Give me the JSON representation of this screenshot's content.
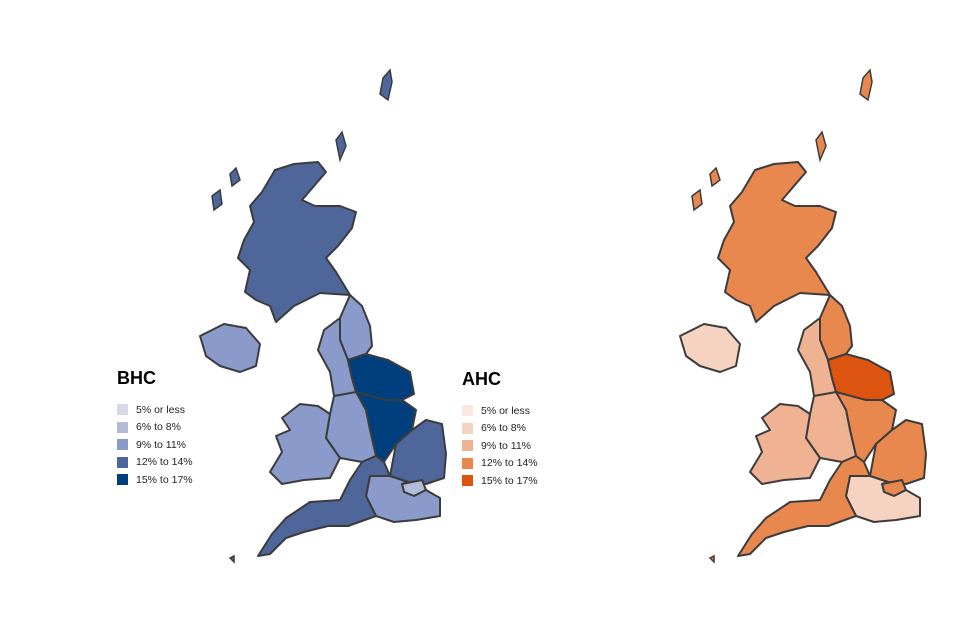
{
  "maps": [
    {
      "id": "bhc",
      "title": "BHC",
      "palette": [
        "#d5d9e8",
        "#b3bcd6",
        "#8a9aca",
        "#4e6699",
        "#003f7d"
      ],
      "regions": {
        "scotland": 3,
        "northern_ireland": 2,
        "north_east": 2,
        "north_west": 2,
        "yorkshire": 4,
        "east_midlands": 4,
        "west_midlands": 2,
        "wales": 2,
        "east": 3,
        "london": 1,
        "south_east": 2,
        "south_west": 3
      }
    },
    {
      "id": "ahc",
      "title": "AHC",
      "palette": [
        "#fbe8e0",
        "#f6d2c1",
        "#efb393",
        "#e8884f",
        "#dc5410"
      ],
      "regions": {
        "scotland": 3,
        "northern_ireland": 1,
        "north_east": 3,
        "north_west": 2,
        "yorkshire": 4,
        "east_midlands": 3,
        "west_midlands": 2,
        "wales": 2,
        "east": 3,
        "london": 3,
        "south_east": 1,
        "south_west": 3
      }
    }
  ],
  "legend_labels": [
    "5% or less",
    "6% to 8%",
    "9% to 11%",
    "12% to 14%",
    "15% to 17%"
  ]
}
